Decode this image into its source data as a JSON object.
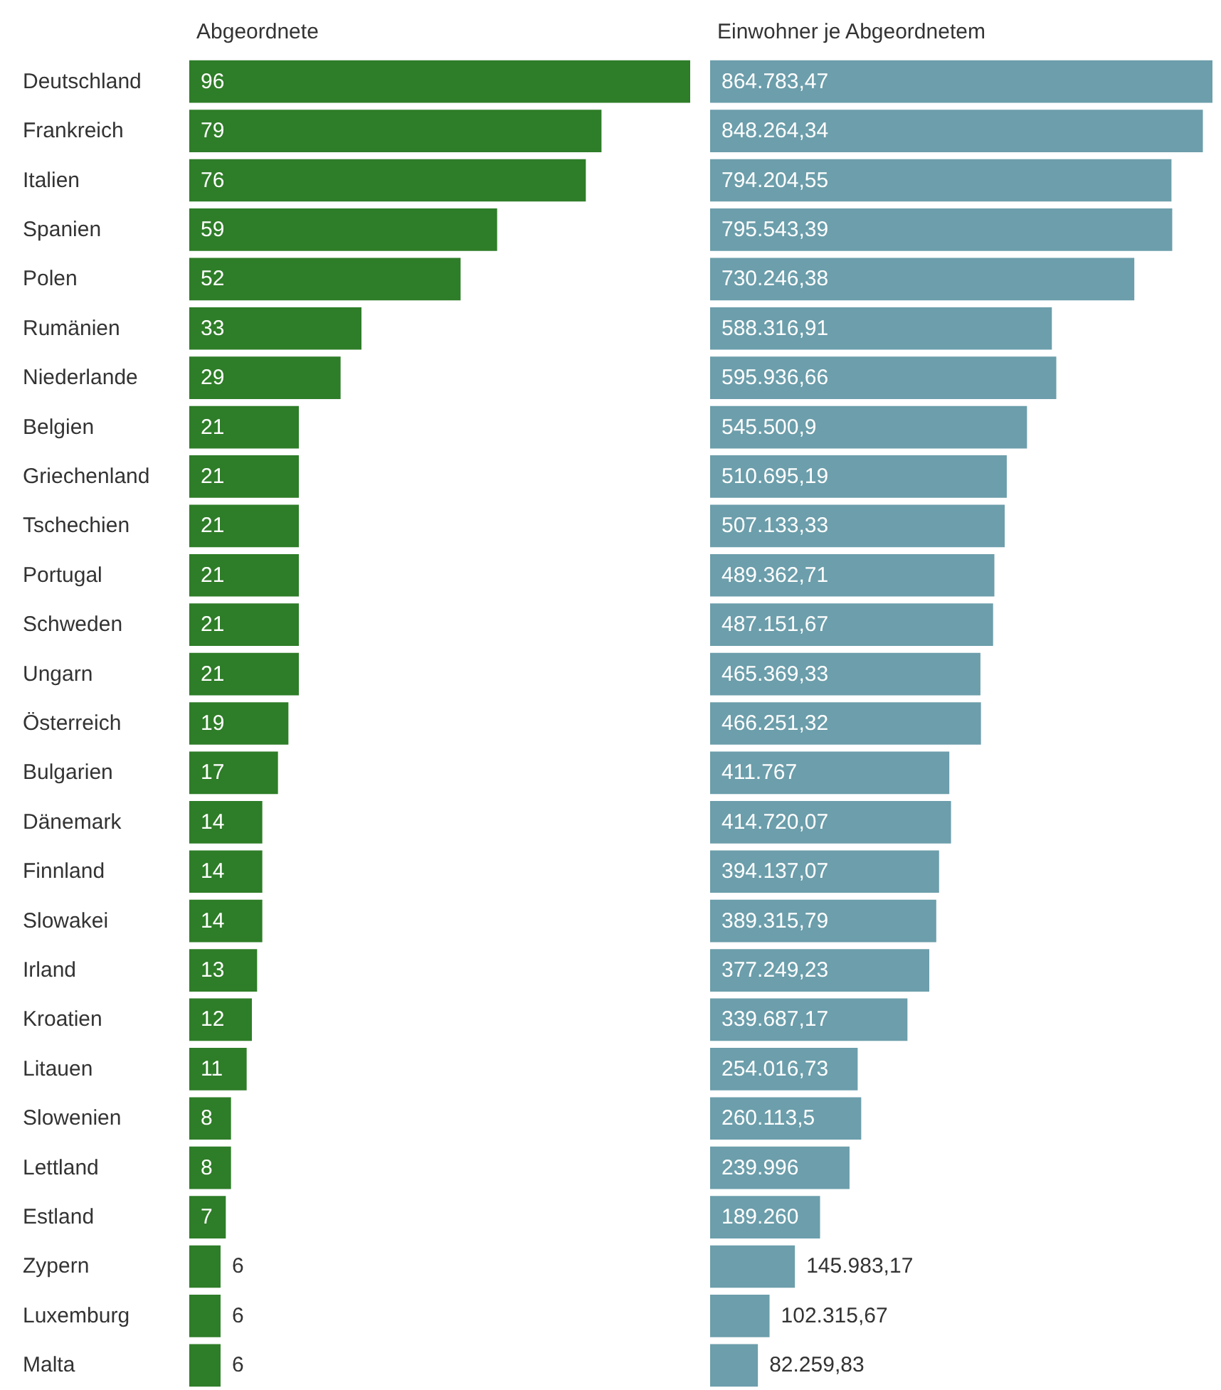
{
  "chart_data": [
    {
      "type": "bar",
      "orientation": "horizontal",
      "title": "Abgeordnete",
      "tick_labels": "y",
      "color": "#2e7d28",
      "categories": [
        "Deutschland",
        "Frankreich",
        "Italien",
        "Spanien",
        "Polen",
        "Rumänien",
        "Niederlande",
        "Belgien",
        "Griechenland",
        "Tschechien",
        "Portugal",
        "Schweden",
        "Ungarn",
        "Österreich",
        "Bulgarien",
        "Dänemark",
        "Finnland",
        "Slowakei",
        "Irland",
        "Kroatien",
        "Litauen",
        "Slowenien",
        "Lettland",
        "Estland",
        "Zypern",
        "Luxemburg",
        "Malta"
      ],
      "values": [
        96,
        79,
        76,
        59,
        52,
        33,
        29,
        21,
        21,
        21,
        21,
        21,
        21,
        19,
        17,
        14,
        14,
        14,
        13,
        12,
        11,
        8,
        8,
        7,
        6,
        6,
        6
      ],
      "data_labels": true
    },
    {
      "type": "bar",
      "orientation": "horizontal",
      "title": "Einwohner je Abgeordnetem",
      "tick_labels": false,
      "color": "#6c9eab",
      "categories": [
        null,
        null,
        null,
        null,
        null,
        null,
        null,
        null,
        null,
        null,
        null,
        null,
        null,
        null,
        null,
        null,
        null,
        null,
        null,
        null,
        null,
        null,
        null,
        null,
        null,
        null,
        null
      ],
      "values": [
        864783.47,
        848264.34,
        794204.55,
        795543.39,
        730246.38,
        588316.91,
        595936.66,
        545500.9,
        510695.19,
        507133.33,
        489362.71,
        487151.67,
        465369.33,
        466251.32,
        411767,
        414720.07,
        394137.07,
        389315.79,
        377249.23,
        339687.17,
        254016.73,
        260113.5,
        239996,
        189260,
        145983.17,
        102315.67,
        82259.83
      ],
      "value_labels": [
        "864.783,47",
        "848.264,34",
        "794.204,55",
        "795.543,39",
        "730.246,38",
        "588.316,91",
        "595.936,66",
        "545.500,9",
        "510.695,19",
        "507.133,33",
        "489.362,71",
        "487.151,67",
        "465.369,33",
        "466.251,32",
        "411.767",
        "414.720,07",
        "394.137,07",
        "389.315,79",
        "377.249,23",
        "339.687,17",
        "254.016,73",
        "260.113,5",
        "239.996",
        "189.260",
        "145.983,17",
        "102.315,67",
        "82.259,83"
      ]
    }
  ]
}
